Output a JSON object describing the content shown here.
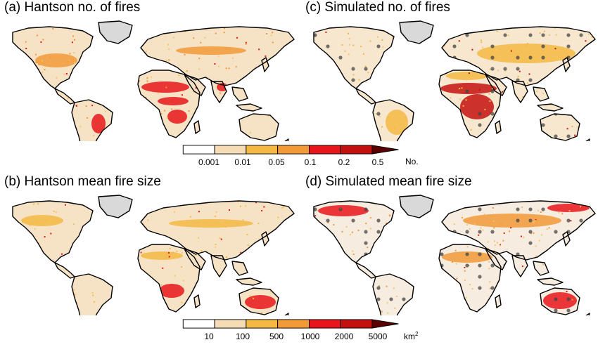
{
  "panels": [
    {
      "title": "(a) Hantson no. of fires"
    },
    {
      "title": "(c) Simulated no. of fires"
    },
    {
      "title": "(b) Hantson mean fire size"
    },
    {
      "title": "(d) Simulated mean fire size"
    }
  ],
  "colorbars": [
    {
      "ticks": [
        "0.001",
        "0.01",
        "0.05",
        "0.1",
        "0.2",
        "0.5"
      ],
      "unit": "No.",
      "unit_sup": ""
    },
    {
      "ticks": [
        "10",
        "100",
        "500",
        "1000",
        "2000",
        "5000"
      ],
      "unit": "km",
      "unit_sup": "2"
    }
  ],
  "palette": [
    "#ffffff",
    "#f6dcb4",
    "#f5b943",
    "#f29a38",
    "#e8161b",
    "#c4100f",
    "#a80e0e",
    "#5a0000"
  ],
  "colors": {
    "land_low": "#f6e3c6",
    "greenland": "#d9d9d9",
    "stipple": "#444444",
    "outline": "#000000"
  }
}
